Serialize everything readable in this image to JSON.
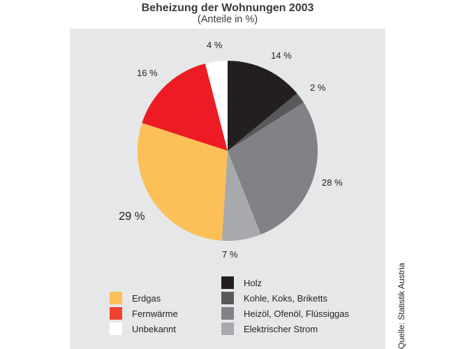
{
  "title": "Beheizung der Wohnungen 2003",
  "subtitle": "(Anteile in %)",
  "source": "Quelle: Statistik Austria",
  "colors": {
    "panel_bg": "#e6e7e8",
    "holz": "#231f20",
    "kohle": "#58595b",
    "heizoel": "#808285",
    "strom": "#a7a9ac",
    "erdgas": "#fdbf57",
    "fernwaerme_slice": "#ed1c24",
    "fernwaerme_legend": "#ef4130",
    "unbekannt": "#ffffff"
  },
  "labels": {
    "holz": "14 %",
    "kohle": "2 %",
    "heizoel": "28 %",
    "strom": "7 %",
    "erdgas": "29 %",
    "fernwaerme": "16 %",
    "unbekannt": "4 %"
  },
  "legend": {
    "left": [
      {
        "label": "Erdgas"
      },
      {
        "label": "Fernwärme"
      },
      {
        "label": "Unbekannt"
      }
    ],
    "right": [
      {
        "label": "Holz"
      },
      {
        "label": "Kohle, Koks, Briketts"
      },
      {
        "label": "Heizöl, Ofenöl, Flüssiggas"
      },
      {
        "label": "Elektrischer Strom"
      }
    ]
  },
  "chart_data": {
    "type": "pie",
    "title": "Beheizung der Wohnungen 2003",
    "subtitle": "(Anteile in %)",
    "unit": "%",
    "start_angle": "12 o'clock, clockwise",
    "categories": [
      "Holz",
      "Kohle, Koks, Briketts",
      "Heizöl, Ofenöl, Flüssiggas",
      "Elektrischer Strom",
      "Erdgas",
      "Fernwärme",
      "Unbekannt"
    ],
    "values": [
      14,
      2,
      28,
      7,
      29,
      16,
      4
    ],
    "colors": [
      "#231f20",
      "#58595b",
      "#808285",
      "#a7a9ac",
      "#fdbf57",
      "#ed1c24",
      "#ffffff"
    ],
    "legend_position": "bottom",
    "source": "Quelle: Statistik Austria"
  }
}
